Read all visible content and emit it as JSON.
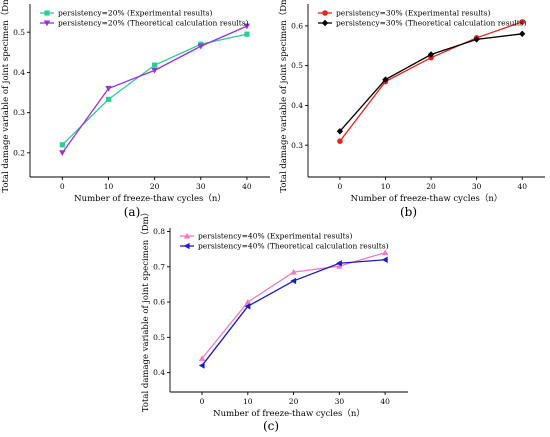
{
  "chart_data": [
    {
      "panel": "(a)",
      "type": "line",
      "xlabel": "Number of freeze-thaw cycles（n）",
      "ylabel": "Total damage variable of joint specimen（Dm）",
      "x": [
        0,
        10,
        20,
        30,
        40
      ],
      "xlim": [
        -7,
        45
      ],
      "ylim": [
        0.14,
        0.57
      ],
      "xticks": [
        0,
        10,
        20,
        30,
        40
      ],
      "yticks": [
        0.2,
        0.3,
        0.4,
        0.5
      ],
      "xtick_labels": [
        "0",
        "10",
        "20",
        "30",
        "40"
      ],
      "ytick_labels": [
        "0.2",
        "0.3",
        "0.4",
        "0.5"
      ],
      "legend_position": "top-left",
      "series": [
        {
          "name": "persistency=20% (Experimental results)",
          "values": [
            0.22,
            0.333,
            0.418,
            0.47,
            0.495
          ],
          "color": "#2ecc9a",
          "marker": "square"
        },
        {
          "name": "persistency=20% (Theoretical calculation results)",
          "values": [
            0.2,
            0.36,
            0.405,
            0.465,
            0.515
          ],
          "color": "#9b30e0",
          "marker": "triangle-down"
        }
      ]
    },
    {
      "panel": "(b)",
      "type": "line",
      "xlabel": "Number of freeze-thaw cycles（n）",
      "ylabel": "Total damage variable of joint specimen（Dm）",
      "x": [
        0,
        10,
        20,
        30,
        40
      ],
      "xlim": [
        -7,
        45
      ],
      "ylim": [
        0.22,
        0.655
      ],
      "xticks": [
        0,
        10,
        20,
        30,
        40
      ],
      "yticks": [
        0.3,
        0.4,
        0.5,
        0.6
      ],
      "xtick_labels": [
        "0",
        "10",
        "20",
        "30",
        "40"
      ],
      "ytick_labels": [
        "0.3",
        "0.4",
        "0.5",
        "0.6"
      ],
      "legend_position": "top-left",
      "series": [
        {
          "name": "persistency=30% (Experimental results)",
          "values": [
            0.31,
            0.46,
            0.52,
            0.57,
            0.61
          ],
          "color": "#e8231c",
          "marker": "circle"
        },
        {
          "name": "persistency=30% (Theoretical calculation results)",
          "values": [
            0.335,
            0.465,
            0.528,
            0.566,
            0.58
          ],
          "color": "#000000",
          "marker": "diamond"
        }
      ]
    },
    {
      "panel": "(c)",
      "type": "line",
      "xlabel": "Number of freeze-thaw cycles（n）",
      "ylabel": "Total damage variable of joint specimen（Dm）",
      "x": [
        0,
        10,
        20,
        30,
        40
      ],
      "xlim": [
        -7,
        45
      ],
      "ylim": [
        0.345,
        0.81
      ],
      "xticks": [
        0,
        10,
        20,
        30,
        40
      ],
      "yticks": [
        0.4,
        0.5,
        0.6,
        0.7,
        0.8
      ],
      "xtick_labels": [
        "0",
        "10",
        "20",
        "30",
        "40"
      ],
      "ytick_labels": [
        "0.4",
        "0.5",
        "0.6",
        "0.7",
        "0.8"
      ],
      "legend_position": "top-left",
      "series": [
        {
          "name": "persistency=40% (Experimental results)",
          "values": [
            0.44,
            0.6,
            0.685,
            0.702,
            0.74
          ],
          "color": "#f07ac0",
          "marker": "triangle-up"
        },
        {
          "name": "persistency=40% (Theoretical calculation results)",
          "values": [
            0.42,
            0.588,
            0.66,
            0.71,
            0.72
          ],
          "color": "#1a1ad0",
          "marker": "triangle-left"
        }
      ]
    }
  ]
}
